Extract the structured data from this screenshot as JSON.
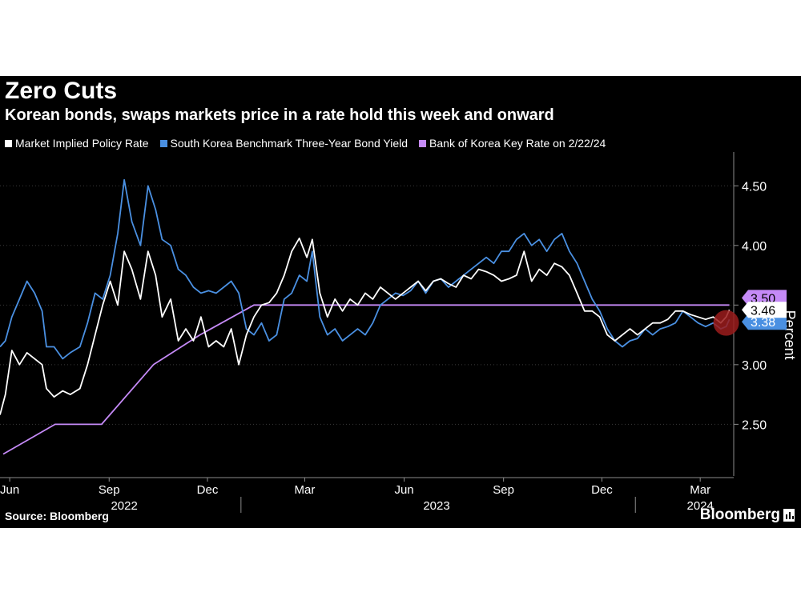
{
  "title": "Zero Cuts",
  "subtitle": "Korean bonds, swaps markets price in a rate hold this week and onward",
  "source": "Source: Bloomberg",
  "brand": "Bloomberg",
  "colors": {
    "background": "#000000",
    "market_implied": "#ffffff",
    "bond_yield": "#4a90e2",
    "key_rate": "#c58af7",
    "axis": "#8c8c8c",
    "highlight": "#9b1c1c"
  },
  "chart_data": {
    "type": "line",
    "title": "Zero Cuts",
    "subtitle": "Korean bonds, swaps markets price in a rate hold this week and onward",
    "ylabel": "Percent",
    "ylim": [
      2.1,
      4.75
    ],
    "yticks": [
      2.5,
      3.0,
      3.5,
      4.0,
      4.5
    ],
    "ytick_labels": [
      "2.50",
      "3.00",
      "",
      "4.00",
      "4.50"
    ],
    "y_axis_side": "right",
    "grid": true,
    "legend_position": "top-left",
    "x_range": [
      "2022-05-23",
      "2024-04-01"
    ],
    "x_ticks": [
      {
        "date": "2022-06-01",
        "label": "Jun"
      },
      {
        "date": "2022-09-01",
        "label": "Sep"
      },
      {
        "date": "2022-12-01",
        "label": "Dec"
      },
      {
        "date": "2023-03-01",
        "label": "Mar"
      },
      {
        "date": "2023-06-01",
        "label": "Jun"
      },
      {
        "date": "2023-09-01",
        "label": "Sep"
      },
      {
        "date": "2023-12-01",
        "label": "Dec"
      },
      {
        "date": "2024-03-01",
        "label": "Mar"
      }
    ],
    "year_labels": [
      {
        "date": "2022-09-15",
        "label": "2022"
      },
      {
        "date": "2023-07-01",
        "label": "2023"
      },
      {
        "date": "2024-03-01",
        "label": "2024"
      }
    ],
    "year_dividers": [
      "2023-01-01",
      "2024-01-01"
    ],
    "end_labels": [
      {
        "series": "Market Implied Policy Rate",
        "label": "3.46"
      },
      {
        "series": "South Korea Benchmark Three-Year Bond Yield",
        "label": "3.38"
      },
      {
        "series": "Bank of Korea Key Rate on 2/22/24",
        "label": "3.50"
      }
    ],
    "highlight_point": {
      "date": "2024-03-25",
      "value": 3.35
    },
    "series": [
      {
        "name": "Market Implied Policy Rate",
        "color": "#ffffff",
        "points": [
          [
            "2022-05-23",
            2.58
          ],
          [
            "2022-05-28",
            2.75
          ],
          [
            "2022-06-03",
            3.12
          ],
          [
            "2022-06-10",
            3.0
          ],
          [
            "2022-06-17",
            3.1
          ],
          [
            "2022-06-24",
            3.05
          ],
          [
            "2022-07-01",
            3.0
          ],
          [
            "2022-07-05",
            2.8
          ],
          [
            "2022-07-12",
            2.73
          ],
          [
            "2022-07-20",
            2.78
          ],
          [
            "2022-07-27",
            2.75
          ],
          [
            "2022-08-05",
            2.8
          ],
          [
            "2022-08-12",
            3.0
          ],
          [
            "2022-08-19",
            3.25
          ],
          [
            "2022-08-26",
            3.5
          ],
          [
            "2022-09-02",
            3.7
          ],
          [
            "2022-09-09",
            3.5
          ],
          [
            "2022-09-15",
            3.95
          ],
          [
            "2022-09-22",
            3.8
          ],
          [
            "2022-09-30",
            3.55
          ],
          [
            "2022-10-07",
            3.95
          ],
          [
            "2022-10-14",
            3.75
          ],
          [
            "2022-10-20",
            3.4
          ],
          [
            "2022-10-28",
            3.55
          ],
          [
            "2022-11-04",
            3.2
          ],
          [
            "2022-11-11",
            3.3
          ],
          [
            "2022-11-18",
            3.2
          ],
          [
            "2022-11-25",
            3.4
          ],
          [
            "2022-12-02",
            3.15
          ],
          [
            "2022-12-09",
            3.2
          ],
          [
            "2022-12-16",
            3.15
          ],
          [
            "2022-12-23",
            3.3
          ],
          [
            "2022-12-30",
            3.0
          ],
          [
            "2023-01-06",
            3.25
          ],
          [
            "2023-01-13",
            3.4
          ],
          [
            "2023-01-20",
            3.5
          ],
          [
            "2023-01-27",
            3.52
          ],
          [
            "2023-02-03",
            3.6
          ],
          [
            "2023-02-10",
            3.75
          ],
          [
            "2023-02-17",
            3.95
          ],
          [
            "2023-02-24",
            4.06
          ],
          [
            "2023-03-03",
            3.9
          ],
          [
            "2023-03-08",
            4.05
          ],
          [
            "2023-03-15",
            3.6
          ],
          [
            "2023-03-22",
            3.4
          ],
          [
            "2023-03-29",
            3.55
          ],
          [
            "2023-04-05",
            3.45
          ],
          [
            "2023-04-12",
            3.55
          ],
          [
            "2023-04-19",
            3.5
          ],
          [
            "2023-04-26",
            3.6
          ],
          [
            "2023-05-03",
            3.55
          ],
          [
            "2023-05-10",
            3.65
          ],
          [
            "2023-05-17",
            3.6
          ],
          [
            "2023-05-24",
            3.55
          ],
          [
            "2023-05-31",
            3.6
          ],
          [
            "2023-06-07",
            3.65
          ],
          [
            "2023-06-14",
            3.7
          ],
          [
            "2023-06-21",
            3.62
          ],
          [
            "2023-06-28",
            3.7
          ],
          [
            "2023-07-05",
            3.72
          ],
          [
            "2023-07-12",
            3.68
          ],
          [
            "2023-07-19",
            3.65
          ],
          [
            "2023-07-26",
            3.75
          ],
          [
            "2023-08-02",
            3.72
          ],
          [
            "2023-08-09",
            3.8
          ],
          [
            "2023-08-16",
            3.78
          ],
          [
            "2023-08-23",
            3.75
          ],
          [
            "2023-08-30",
            3.7
          ],
          [
            "2023-09-06",
            3.72
          ],
          [
            "2023-09-13",
            3.75
          ],
          [
            "2023-09-20",
            3.95
          ],
          [
            "2023-09-27",
            3.7
          ],
          [
            "2023-10-04",
            3.8
          ],
          [
            "2023-10-11",
            3.75
          ],
          [
            "2023-10-18",
            3.85
          ],
          [
            "2023-10-25",
            3.82
          ],
          [
            "2023-11-01",
            3.75
          ],
          [
            "2023-11-08",
            3.6
          ],
          [
            "2023-11-15",
            3.45
          ],
          [
            "2023-11-22",
            3.45
          ],
          [
            "2023-11-29",
            3.4
          ],
          [
            "2023-12-06",
            3.25
          ],
          [
            "2023-12-13",
            3.2
          ],
          [
            "2023-12-20",
            3.25
          ],
          [
            "2023-12-27",
            3.3
          ],
          [
            "2024-01-03",
            3.25
          ],
          [
            "2024-01-10",
            3.3
          ],
          [
            "2024-01-17",
            3.35
          ],
          [
            "2024-01-24",
            3.35
          ],
          [
            "2024-01-31",
            3.38
          ],
          [
            "2024-02-07",
            3.45
          ],
          [
            "2024-02-14",
            3.45
          ],
          [
            "2024-02-21",
            3.42
          ],
          [
            "2024-02-28",
            3.4
          ],
          [
            "2024-03-06",
            3.38
          ],
          [
            "2024-03-13",
            3.4
          ],
          [
            "2024-03-20",
            3.35
          ],
          [
            "2024-03-25",
            3.4
          ],
          [
            "2024-03-28",
            3.46
          ]
        ]
      },
      {
        "name": "South Korea Benchmark Three-Year Bond Yield",
        "color": "#4a90e2",
        "points": [
          [
            "2022-05-23",
            3.15
          ],
          [
            "2022-05-28",
            3.2
          ],
          [
            "2022-06-03",
            3.4
          ],
          [
            "2022-06-10",
            3.55
          ],
          [
            "2022-06-17",
            3.7
          ],
          [
            "2022-06-24",
            3.6
          ],
          [
            "2022-07-01",
            3.45
          ],
          [
            "2022-07-05",
            3.15
          ],
          [
            "2022-07-12",
            3.15
          ],
          [
            "2022-07-20",
            3.05
          ],
          [
            "2022-07-27",
            3.1
          ],
          [
            "2022-08-05",
            3.15
          ],
          [
            "2022-08-12",
            3.35
          ],
          [
            "2022-08-19",
            3.6
          ],
          [
            "2022-08-26",
            3.55
          ],
          [
            "2022-09-02",
            3.75
          ],
          [
            "2022-09-09",
            4.1
          ],
          [
            "2022-09-15",
            4.55
          ],
          [
            "2022-09-22",
            4.2
          ],
          [
            "2022-09-30",
            4.0
          ],
          [
            "2022-10-07",
            4.5
          ],
          [
            "2022-10-14",
            4.3
          ],
          [
            "2022-10-20",
            4.05
          ],
          [
            "2022-10-28",
            4.0
          ],
          [
            "2022-11-04",
            3.8
          ],
          [
            "2022-11-11",
            3.75
          ],
          [
            "2022-11-18",
            3.65
          ],
          [
            "2022-11-25",
            3.6
          ],
          [
            "2022-12-02",
            3.62
          ],
          [
            "2022-12-09",
            3.6
          ],
          [
            "2022-12-16",
            3.65
          ],
          [
            "2022-12-23",
            3.7
          ],
          [
            "2022-12-30",
            3.6
          ],
          [
            "2023-01-06",
            3.3
          ],
          [
            "2023-01-13",
            3.25
          ],
          [
            "2023-01-20",
            3.35
          ],
          [
            "2023-01-27",
            3.2
          ],
          [
            "2023-02-03",
            3.25
          ],
          [
            "2023-02-10",
            3.55
          ],
          [
            "2023-02-17",
            3.6
          ],
          [
            "2023-02-24",
            3.75
          ],
          [
            "2023-03-03",
            3.7
          ],
          [
            "2023-03-08",
            3.95
          ],
          [
            "2023-03-15",
            3.4
          ],
          [
            "2023-03-22",
            3.25
          ],
          [
            "2023-03-29",
            3.3
          ],
          [
            "2023-04-05",
            3.2
          ],
          [
            "2023-04-12",
            3.25
          ],
          [
            "2023-04-19",
            3.3
          ],
          [
            "2023-04-26",
            3.25
          ],
          [
            "2023-05-03",
            3.35
          ],
          [
            "2023-05-10",
            3.5
          ],
          [
            "2023-05-17",
            3.55
          ],
          [
            "2023-05-24",
            3.6
          ],
          [
            "2023-05-31",
            3.58
          ],
          [
            "2023-06-07",
            3.62
          ],
          [
            "2023-06-14",
            3.7
          ],
          [
            "2023-06-21",
            3.6
          ],
          [
            "2023-06-28",
            3.7
          ],
          [
            "2023-07-05",
            3.72
          ],
          [
            "2023-07-12",
            3.65
          ],
          [
            "2023-07-19",
            3.7
          ],
          [
            "2023-07-26",
            3.75
          ],
          [
            "2023-08-02",
            3.8
          ],
          [
            "2023-08-09",
            3.85
          ],
          [
            "2023-08-16",
            3.9
          ],
          [
            "2023-08-23",
            3.85
          ],
          [
            "2023-08-30",
            3.95
          ],
          [
            "2023-09-06",
            3.95
          ],
          [
            "2023-09-13",
            4.05
          ],
          [
            "2023-09-20",
            4.1
          ],
          [
            "2023-09-27",
            4.0
          ],
          [
            "2023-10-04",
            4.05
          ],
          [
            "2023-10-11",
            3.95
          ],
          [
            "2023-10-18",
            4.05
          ],
          [
            "2023-10-25",
            4.1
          ],
          [
            "2023-11-01",
            3.95
          ],
          [
            "2023-11-08",
            3.85
          ],
          [
            "2023-11-15",
            3.7
          ],
          [
            "2023-11-22",
            3.55
          ],
          [
            "2023-11-29",
            3.45
          ],
          [
            "2023-12-06",
            3.3
          ],
          [
            "2023-12-13",
            3.2
          ],
          [
            "2023-12-20",
            3.15
          ],
          [
            "2023-12-27",
            3.2
          ],
          [
            "2024-01-03",
            3.22
          ],
          [
            "2024-01-10",
            3.3
          ],
          [
            "2024-01-17",
            3.25
          ],
          [
            "2024-01-24",
            3.3
          ],
          [
            "2024-01-31",
            3.32
          ],
          [
            "2024-02-07",
            3.35
          ],
          [
            "2024-02-14",
            3.45
          ],
          [
            "2024-02-21",
            3.4
          ],
          [
            "2024-02-28",
            3.35
          ],
          [
            "2024-03-06",
            3.32
          ],
          [
            "2024-03-13",
            3.35
          ],
          [
            "2024-03-20",
            3.3
          ],
          [
            "2024-03-25",
            3.32
          ],
          [
            "2024-03-28",
            3.38
          ]
        ]
      },
      {
        "name": "Bank of Korea Key Rate on 2/22/24",
        "color": "#c58af7",
        "points": [
          [
            "2022-05-26",
            2.25
          ],
          [
            "2022-07-13",
            2.5
          ],
          [
            "2022-08-25",
            2.5
          ],
          [
            "2022-10-12",
            3.0
          ],
          [
            "2022-11-24",
            3.25
          ],
          [
            "2023-01-13",
            3.5
          ],
          [
            "2024-03-28",
            3.5
          ]
        ]
      }
    ]
  }
}
